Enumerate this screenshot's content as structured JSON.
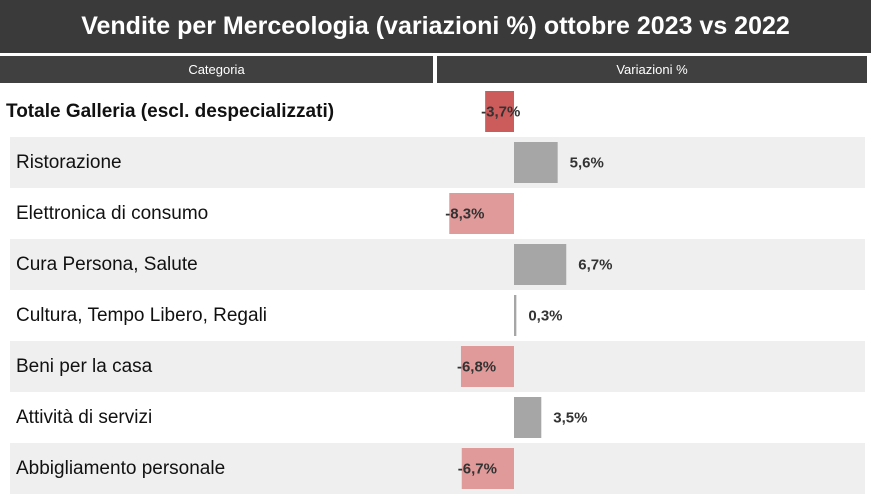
{
  "title": "Vendite per Merceologia (variazioni %) ottobre 2023 vs 2022",
  "header": {
    "category": "Categoria",
    "variation": "Variazioni %"
  },
  "colors": {
    "title_bg": "#3a3a3a",
    "header_bg": "#404040",
    "row_shade": "#efefef",
    "positive_bar": "#a6a6a6",
    "negative_bar": "#e09a9a",
    "total_negative_bar": "#cc5c5c"
  },
  "chart_data": {
    "type": "bar",
    "orientation": "horizontal",
    "categories": [
      "Totale Galleria (escl. despecializzati)",
      "Ristorazione",
      "Elettronica di consumo",
      "Cura Persona, Salute",
      "Cultura, Tempo Libero, Regali",
      "Beni per la casa",
      "Attività di servizi",
      "Abbigliamento personale"
    ],
    "values": [
      -3.7,
      5.6,
      -8.3,
      6.7,
      0.3,
      -6.8,
      3.5,
      -6.7
    ],
    "value_labels": [
      "-3,7%",
      "5,6%",
      "-8,3%",
      "6,7%",
      "0,3%",
      "-6,8%",
      "3,5%",
      "-6,7%"
    ],
    "total_index": 0,
    "unit": "%",
    "grid": false
  }
}
